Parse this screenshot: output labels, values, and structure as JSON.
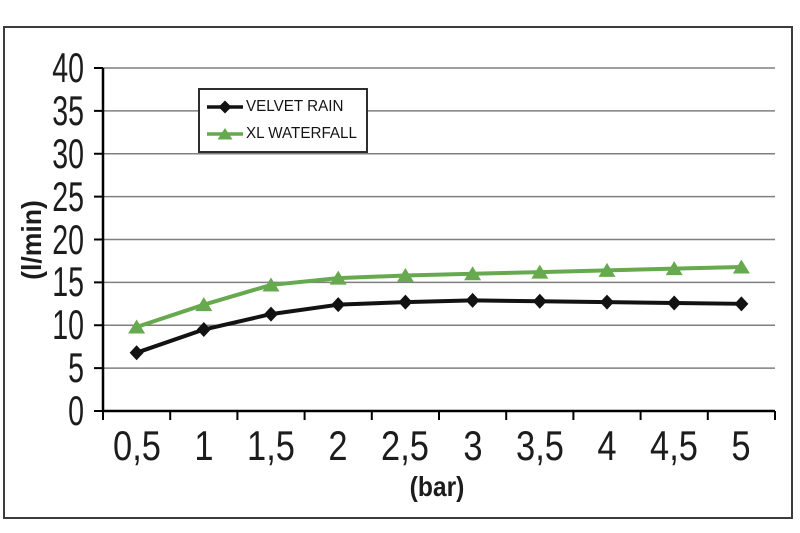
{
  "page": {
    "background_color": "#ffffff",
    "frame_border_color": "#3c3c3c"
  },
  "chart_data": {
    "type": "line",
    "title": "",
    "xlabel": "(bar)",
    "ylabel": "(l/min)",
    "x": [
      0.5,
      1,
      1.5,
      2,
      2.5,
      3,
      3.5,
      4,
      4.5,
      5
    ],
    "x_tick_labels": [
      "0,5",
      "1",
      "1,5",
      "2",
      "2,5",
      "3",
      "3,5",
      "4",
      "4,5",
      "5"
    ],
    "y_tick_values": [
      0,
      5,
      10,
      15,
      20,
      25,
      30,
      35,
      40
    ],
    "y_tick_labels": [
      "0",
      "5",
      "10",
      "15",
      "20",
      "25",
      "30",
      "35",
      "40"
    ],
    "ylim": [
      0,
      40
    ],
    "grid": "horizontal",
    "legend_position": "inside-top-center",
    "series": [
      {
        "name": "VELVET RAIN",
        "color": "#121212",
        "marker": "diamond",
        "values": [
          6.8,
          9.5,
          11.3,
          12.4,
          12.7,
          12.9,
          12.8,
          12.7,
          12.6,
          12.5
        ]
      },
      {
        "name": "XL WATERFALL",
        "color": "#67A94F",
        "marker": "triangle",
        "values": [
          9.8,
          12.4,
          14.7,
          15.5,
          15.8,
          16.0,
          16.2,
          16.4,
          16.6,
          16.8
        ]
      }
    ],
    "axis_color": "#000000",
    "gridline_color": "#7f7f7f",
    "text_color": "#1c1c1c"
  }
}
